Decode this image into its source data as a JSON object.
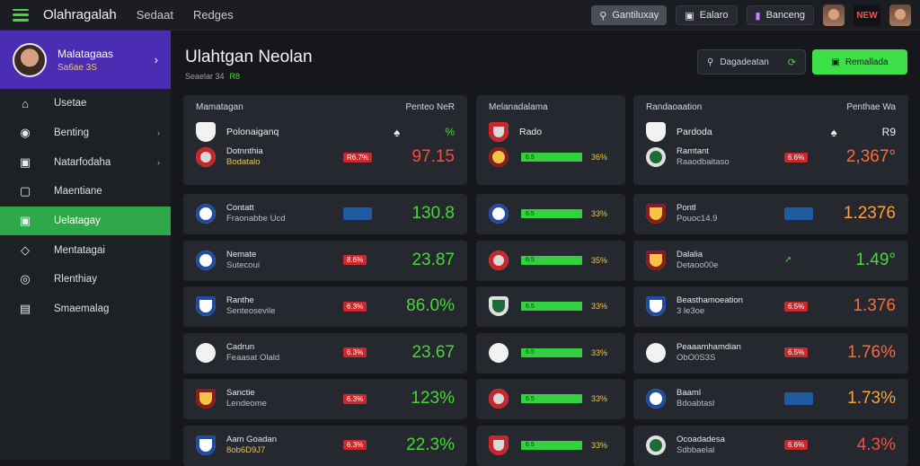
{
  "topbar": {
    "brand": "Olahragalah",
    "links": [
      "Sedaat",
      "Redges"
    ],
    "search_label": "Gantiluxay",
    "btn1_label": "Ealaro",
    "btn2_label": "Banceng",
    "logo_text": "NEW"
  },
  "profile": {
    "name": "Malatagaas",
    "sub": "Sa6ae 3S"
  },
  "nav": [
    {
      "label": "Usetae",
      "icon": "home-icon",
      "chevron": false
    },
    {
      "label": "Benting",
      "icon": "ball-icon",
      "chevron": true
    },
    {
      "label": "Natarfodaha",
      "icon": "trophy-icon",
      "chevron": true
    },
    {
      "label": "Maentiane",
      "icon": "screen-icon",
      "chevron": false
    },
    {
      "label": "Uelatagay",
      "icon": "chat-icon",
      "chevron": false,
      "active": true
    },
    {
      "label": "Mentatagai",
      "icon": "tag-icon",
      "chevron": false
    },
    {
      "label": "Rlenthiay",
      "icon": "location-icon",
      "chevron": false
    },
    {
      "label": "Smaemalag",
      "icon": "message-icon",
      "chevron": false
    }
  ],
  "page": {
    "title": "Ulahtgan Neolan",
    "subtitle": "Seaelar 34",
    "subtitle_accent": "R8",
    "search_label": "Dagadeatan",
    "action_label": "Remallada"
  },
  "col1": {
    "head": {
      "left": "Mamatagan",
      "right": "Penteo NeR",
      "team": "Polonaiganq",
      "mid": "♠",
      "val": "%"
    },
    "rows": [
      {
        "name": "Dotnnthia",
        "sub": "Bodatalo",
        "sub_gold": true,
        "badge": "R6.7%",
        "badge_type": "red",
        "val": "97.15",
        "val_color": "red",
        "crest": "c-red"
      },
      {
        "name": "Contatt",
        "sub": "Fraonabbe Ucd",
        "sub_gold": false,
        "badge": "",
        "badge_type": "blue",
        "val": "130.8",
        "val_color": "green",
        "crest": "c-blue"
      },
      {
        "name": "Nemate",
        "sub": "Sutecoui",
        "sub_gold": false,
        "badge": "8.6%",
        "badge_type": "red",
        "val": "23.87",
        "val_color": "green",
        "crest": "c-blue"
      },
      {
        "name": "Ranthe",
        "sub": "Senteosevile",
        "sub_gold": false,
        "badge": "6.3%",
        "badge_type": "red",
        "val": "86.0%",
        "val_color": "green",
        "crest": "c-blue c-shield"
      },
      {
        "name": "Cadrun",
        "sub": "Feaasat Olald",
        "sub_gold": false,
        "badge": "6.3%",
        "badge_type": "red",
        "val": "23.67",
        "val_color": "green",
        "crest": "c-white"
      },
      {
        "name": "Sanctie",
        "sub": "Lendeome",
        "sub_gold": false,
        "badge": "6.3%",
        "badge_type": "red",
        "val": "123%",
        "val_color": "green",
        "crest": "c-yellow c-shield"
      },
      {
        "name": "Aam Goadan",
        "sub": "8ob6D9J7",
        "sub_gold": true,
        "badge": "6.3%",
        "badge_type": "red",
        "val": "22.3%",
        "val_color": "green",
        "crest": "c-blue c-shield"
      }
    ]
  },
  "col2": {
    "head": {
      "left": "Melanadalama",
      "team": "Rado"
    },
    "rows": [
      {
        "badge": "6.5",
        "pct": "36%",
        "crest": "c-yellow"
      },
      {
        "badge": "6.5",
        "pct": "33%",
        "crest": "c-blue"
      },
      {
        "badge": "6.5",
        "pct": "35%",
        "crest": "c-red"
      },
      {
        "badge": "6.5",
        "pct": "33%",
        "crest": "c-green c-shield"
      },
      {
        "badge": "6.5",
        "pct": "33%",
        "crest": "c-white"
      },
      {
        "badge": "6.5",
        "pct": "33%",
        "crest": "c-red"
      },
      {
        "badge": "6.5",
        "pct": "33%",
        "crest": "c-red c-shield"
      }
    ]
  },
  "col3": {
    "head": {
      "left": "Randaoaation",
      "right": "Penthae Wa",
      "team": "Pardoda",
      "mid": "♠",
      "val": "R9"
    },
    "rows": [
      {
        "name": "Ramtant",
        "sub": "Raaodbaitaso",
        "badge": "6.6%",
        "badge_type": "red",
        "val": "2,367°",
        "val_color": "redorange",
        "crest": "c-green"
      },
      {
        "name": "Pontl",
        "sub": "Pouoc14.9",
        "badge": "",
        "badge_type": "blue",
        "val": "1.2376",
        "val_color": "orange",
        "crest": "c-yellow c-shield"
      },
      {
        "name": "Dalalia",
        "sub": "Detaoo00e",
        "badge": "",
        "badge_type": "green",
        "val": "1.49°",
        "val_color": "green",
        "crest": "c-yellow c-shield"
      },
      {
        "name": "Beasthamoeation",
        "sub": "3 le3oe",
        "badge": "6.5%",
        "badge_type": "red",
        "val": "1.376",
        "val_color": "redorange",
        "crest": "c-blue c-shield"
      },
      {
        "name": "Peaaamhamdian",
        "sub": "ObO0S3S",
        "badge": "6.5%",
        "badge_type": "red",
        "val": "1.76%",
        "val_color": "redorange",
        "crest": "c-white"
      },
      {
        "name": "Baaml",
        "sub": "Bdoabtasl",
        "badge": "",
        "badge_type": "blue",
        "val": "1.73%",
        "val_color": "orange",
        "crest": "c-blue"
      },
      {
        "name": "Ocoadadesa",
        "sub": "Sdbbaelal",
        "badge": "6.6%",
        "badge_type": "red",
        "val": "4.3%",
        "val_color": "red",
        "crest": "c-green"
      }
    ]
  },
  "colors": {
    "accent": "#3ee04a",
    "purple": "#4a2db3",
    "danger": "#c9282c"
  }
}
